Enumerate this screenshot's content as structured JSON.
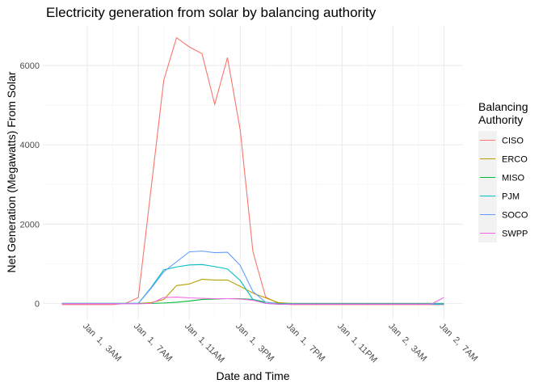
{
  "chart_data": {
    "type": "line",
    "title": "Electricity generation from solar by balancing authority",
    "x_label": "Date and Time",
    "y_label": "Net Generation (Megawatts) From Solar",
    "legend_title": "Balancing Authority",
    "legend_position": "right",
    "grid": true,
    "x": [
      1,
      2,
      3,
      4,
      5,
      6,
      7,
      8,
      9,
      10,
      11,
      12,
      13,
      14,
      15,
      16,
      17,
      18,
      19,
      20,
      21,
      22,
      23,
      24,
      25,
      26,
      27,
      28,
      29,
      30,
      31
    ],
    "xlim": [
      -0.5,
      32.5
    ],
    "xticks": [
      {
        "value": 3,
        "label": "Jan  1,  3AM"
      },
      {
        "value": 7,
        "label": "Jan  1,  7AM"
      },
      {
        "value": 11,
        "label": "Jan  1, 11AM"
      },
      {
        "value": 15,
        "label": "Jan  1,  3PM"
      },
      {
        "value": 19,
        "label": "Jan  1,  7PM"
      },
      {
        "value": 23,
        "label": "Jan  1, 11PM"
      },
      {
        "value": 27,
        "label": "Jan  2,  3AM"
      },
      {
        "value": 31,
        "label": "Jan  2,  7AM"
      }
    ],
    "ylim": [
      -400,
      7000
    ],
    "yticks": [
      0,
      2000,
      4000,
      6000
    ],
    "series": [
      {
        "name": "CISO",
        "color": "#F8766D",
        "values": [
          -30,
          -30,
          -30,
          -30,
          -30,
          0,
          150,
          2890,
          5630,
          6700,
          6470,
          6300,
          5020,
          6200,
          4380,
          1310,
          160,
          0,
          -30,
          -30,
          -30,
          -30,
          -30,
          -30,
          -30,
          -30,
          -30,
          -30,
          -30,
          -30,
          -30
        ]
      },
      {
        "name": "ERCO",
        "color": "#B79F00",
        "values": [
          0,
          0,
          0,
          0,
          0,
          0,
          0,
          20,
          100,
          450,
          490,
          610,
          590,
          590,
          430,
          260,
          140,
          20,
          0,
          0,
          0,
          0,
          0,
          0,
          0,
          0,
          0,
          0,
          0,
          0,
          0
        ]
      },
      {
        "name": "MISO",
        "color": "#00BA38",
        "values": [
          0,
          0,
          0,
          0,
          0,
          0,
          0,
          0,
          10,
          30,
          60,
          100,
          110,
          120,
          120,
          100,
          30,
          0,
          0,
          0,
          0,
          0,
          0,
          0,
          0,
          0,
          0,
          0,
          0,
          0,
          0
        ]
      },
      {
        "name": "PJM",
        "color": "#00BFC4",
        "values": [
          0,
          0,
          0,
          0,
          0,
          0,
          0,
          400,
          850,
          920,
          970,
          980,
          930,
          870,
          580,
          100,
          0,
          -20,
          -20,
          -20,
          -20,
          -20,
          -20,
          -20,
          -20,
          -20,
          -20,
          -20,
          -20,
          -20,
          -20
        ]
      },
      {
        "name": "SOCO",
        "color": "#619CFF",
        "values": [
          0,
          0,
          0,
          0,
          0,
          0,
          0,
          380,
          800,
          1050,
          1300,
          1320,
          1280,
          1290,
          960,
          300,
          30,
          -10,
          -10,
          -10,
          -10,
          -10,
          -10,
          -10,
          -10,
          -10,
          -10,
          -10,
          -10,
          -10,
          -10
        ]
      },
      {
        "name": "SWPP",
        "color": "#F564E3",
        "values": [
          -10,
          -10,
          -10,
          -10,
          -10,
          -10,
          -10,
          0,
          150,
          160,
          140,
          130,
          120,
          120,
          110,
          80,
          0,
          -20,
          -20,
          -20,
          -20,
          -20,
          -20,
          -20,
          -20,
          -20,
          -20,
          -20,
          -20,
          -20,
          150
        ]
      }
    ]
  }
}
